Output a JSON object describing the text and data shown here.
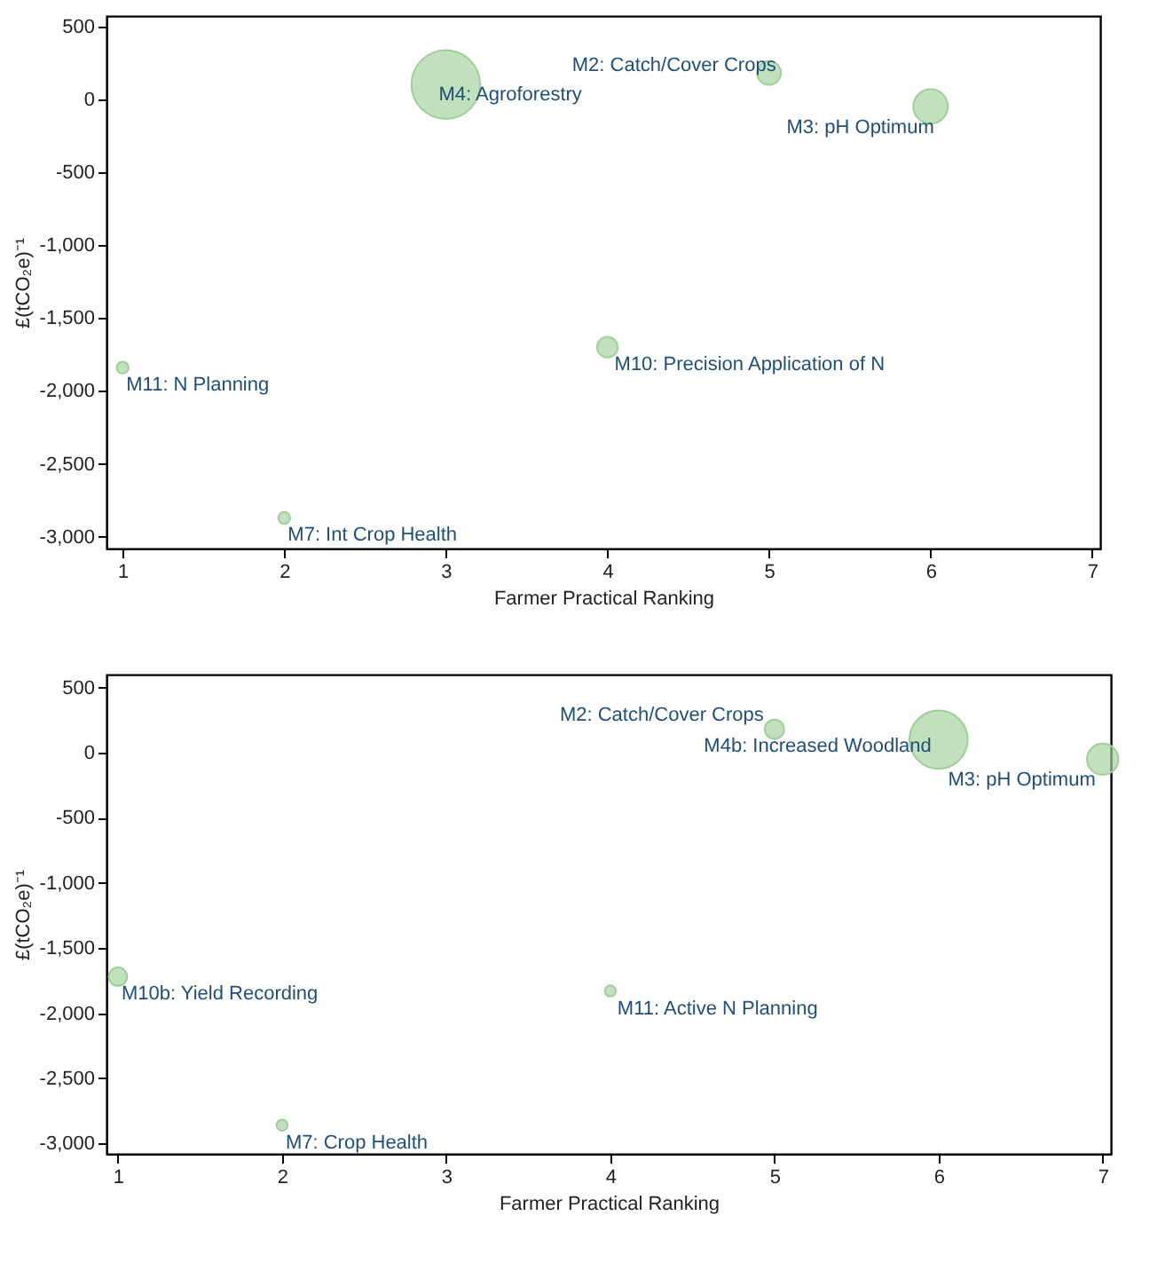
{
  "chart_data": [
    {
      "type": "bubble",
      "xlabel": "Farmer Practical Ranking",
      "ylabel": "£(tCO₂e)⁻¹",
      "color": "#9fcf98",
      "x": [
        3,
        5,
        6,
        1,
        4,
        2
      ],
      "values": [
        100,
        180,
        -50,
        -1840,
        -1700,
        -2870
      ],
      "sizes": [
        1,
        0.12,
        0.25,
        0.03,
        0.09,
        0.03
      ],
      "xlim": [
        0.9,
        7.05
      ],
      "xticks": [
        1,
        2,
        3,
        4,
        5,
        6,
        7
      ],
      "ylim": [
        -3080,
        570
      ],
      "yticks": [
        {
          "value": -3000,
          "label": "-3,000"
        },
        {
          "value": -2500,
          "label": "-2,500"
        },
        {
          "value": -2000,
          "label": "-2,000"
        },
        {
          "value": -1500,
          "label": "-1,500"
        },
        {
          "value": -1000,
          "label": "-1,000"
        },
        -500,
        0,
        500
      ],
      "annotations": [
        {
          "text": "M4: Agroforestry",
          "x": 3,
          "y": 100
        },
        {
          "text": "M2: Catch/Cover Crops",
          "x": 5,
          "y": 180
        },
        {
          "text": "M3: pH Optimum",
          "x": 6,
          "y": -50
        },
        {
          "text": "M11: N Planning",
          "x": 1,
          "y": -1840
        },
        {
          "text": "M10: Precision Application of N",
          "x": 4,
          "y": -1700
        },
        {
          "text": "M7: Int Crop Health",
          "x": 2,
          "y": -2870
        }
      ]
    },
    {
      "type": "bubble",
      "xlabel": "Farmer Practical Ranking",
      "ylabel": "£(tCO₂e)⁻¹",
      "color": "#9fcf98",
      "x": [
        5,
        6,
        7,
        1,
        4,
        2
      ],
      "values": [
        180,
        100,
        -50,
        -1720,
        -1830,
        -2860
      ],
      "sizes": [
        0.11,
        1,
        0.29,
        0.1,
        0.036,
        0.036
      ],
      "xlim": [
        0.93,
        7.05
      ],
      "xticks": [
        1,
        2,
        3,
        4,
        5,
        6,
        7
      ],
      "ylim": [
        -3080,
        600
      ],
      "yticks": [
        {
          "value": -3000,
          "label": "-3,000"
        },
        {
          "value": -2500,
          "label": "-2,500"
        },
        {
          "value": -2000,
          "label": "-2,000"
        },
        {
          "value": -1500,
          "label": "-1,500"
        },
        {
          "value": -1000,
          "label": "-1,000"
        },
        -500,
        0,
        500
      ],
      "annotations": [
        {
          "text": "M2: Catch/Cover Crops",
          "x": 5,
          "y": 180
        },
        {
          "text": "M4b: Increased Woodland",
          "x": 6,
          "y": 100
        },
        {
          "text": "M3: pH Optimum",
          "x": 7,
          "y": -50
        },
        {
          "text": "M10b: Yield Recording",
          "x": 1,
          "y": -1720
        },
        {
          "text": "M11: Active N Planning",
          "x": 4,
          "y": -1830
        },
        {
          "text": "M7: Crop Health",
          "x": 2,
          "y": -2860
        }
      ]
    }
  ]
}
